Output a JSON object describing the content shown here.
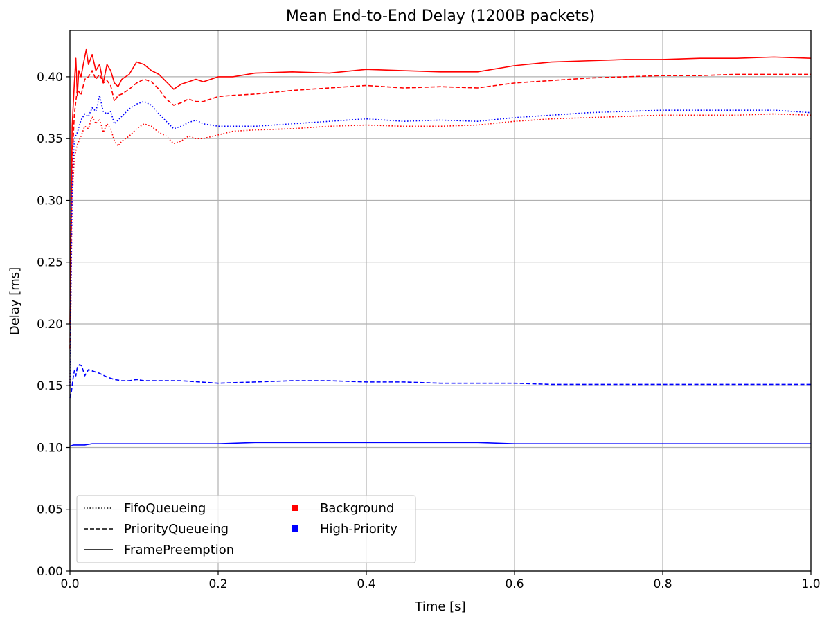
{
  "chart_data": {
    "type": "line",
    "title": "Mean End-to-End Delay (1200B packets)",
    "xlabel": "Time [s]",
    "ylabel": "Delay [ms]",
    "xlim": [
      0.0,
      1.0
    ],
    "ylim": [
      0.0,
      0.4375
    ],
    "x_ticks": [
      "0.0",
      "0.2",
      "0.4",
      "0.6",
      "0.8",
      "1.0"
    ],
    "y_ticks": [
      "0.00",
      "0.05",
      "0.10",
      "0.15",
      "0.20",
      "0.25",
      "0.30",
      "0.35",
      "0.40"
    ],
    "grid": true,
    "legend_position": "lower-left",
    "legend": {
      "styles": [
        {
          "label": "FifoQueueing",
          "dash": "dotted"
        },
        {
          "label": "PriorityQueueing",
          "dash": "dashed"
        },
        {
          "label": "FramePreemption",
          "dash": "solid"
        }
      ],
      "classes": [
        {
          "label": "Background",
          "color": "#ff0000"
        },
        {
          "label": "High-Priority",
          "color": "#0000ff"
        }
      ]
    },
    "series": [
      {
        "class": "Background",
        "method": "FifoQueueing",
        "color": "#ff0000",
        "dash": "dotted",
        "x": [
          0.0,
          0.003,
          0.006,
          0.01,
          0.015,
          0.02,
          0.025,
          0.03,
          0.035,
          0.04,
          0.045,
          0.05,
          0.055,
          0.06,
          0.065,
          0.07,
          0.08,
          0.09,
          0.1,
          0.11,
          0.12,
          0.13,
          0.14,
          0.15,
          0.16,
          0.17,
          0.18,
          0.2,
          0.22,
          0.25,
          0.3,
          0.35,
          0.4,
          0.45,
          0.5,
          0.55,
          0.6,
          0.65,
          0.7,
          0.75,
          0.8,
          0.85,
          0.9,
          0.95,
          1.0
        ],
        "y": [
          0.15,
          0.3,
          0.335,
          0.345,
          0.352,
          0.36,
          0.358,
          0.368,
          0.362,
          0.366,
          0.355,
          0.362,
          0.358,
          0.348,
          0.344,
          0.348,
          0.352,
          0.358,
          0.362,
          0.36,
          0.355,
          0.352,
          0.346,
          0.348,
          0.352,
          0.35,
          0.35,
          0.353,
          0.356,
          0.357,
          0.358,
          0.36,
          0.361,
          0.36,
          0.36,
          0.361,
          0.364,
          0.366,
          0.367,
          0.368,
          0.369,
          0.369,
          0.369,
          0.37,
          0.369
        ]
      },
      {
        "class": "Background",
        "method": "PriorityQueueing",
        "color": "#ff0000",
        "dash": "dashed",
        "x": [
          0.0,
          0.003,
          0.006,
          0.01,
          0.015,
          0.02,
          0.025,
          0.03,
          0.035,
          0.04,
          0.045,
          0.05,
          0.055,
          0.06,
          0.065,
          0.07,
          0.08,
          0.09,
          0.1,
          0.11,
          0.12,
          0.13,
          0.14,
          0.15,
          0.16,
          0.17,
          0.18,
          0.2,
          0.22,
          0.25,
          0.3,
          0.35,
          0.4,
          0.45,
          0.5,
          0.55,
          0.6,
          0.65,
          0.7,
          0.75,
          0.8,
          0.85,
          0.9,
          0.95,
          1.0
        ],
        "y": [
          0.18,
          0.33,
          0.37,
          0.39,
          0.385,
          0.398,
          0.4,
          0.405,
          0.398,
          0.402,
          0.395,
          0.397,
          0.393,
          0.38,
          0.385,
          0.386,
          0.39,
          0.395,
          0.398,
          0.396,
          0.39,
          0.382,
          0.377,
          0.379,
          0.382,
          0.38,
          0.38,
          0.384,
          0.385,
          0.386,
          0.389,
          0.391,
          0.393,
          0.391,
          0.392,
          0.391,
          0.395,
          0.397,
          0.399,
          0.4,
          0.401,
          0.401,
          0.402,
          0.402,
          0.402
        ]
      },
      {
        "class": "Background",
        "method": "FramePreemption",
        "color": "#ff0000",
        "dash": "solid",
        "x": [
          0.0,
          0.003,
          0.006,
          0.008,
          0.01,
          0.012,
          0.015,
          0.018,
          0.022,
          0.025,
          0.03,
          0.035,
          0.04,
          0.045,
          0.05,
          0.055,
          0.06,
          0.065,
          0.07,
          0.08,
          0.09,
          0.1,
          0.11,
          0.12,
          0.13,
          0.14,
          0.15,
          0.16,
          0.17,
          0.18,
          0.2,
          0.22,
          0.25,
          0.3,
          0.35,
          0.4,
          0.45,
          0.5,
          0.55,
          0.6,
          0.65,
          0.7,
          0.75,
          0.8,
          0.85,
          0.9,
          0.95,
          1.0
        ],
        "y": [
          0.2,
          0.36,
          0.395,
          0.415,
          0.385,
          0.405,
          0.4,
          0.41,
          0.422,
          0.41,
          0.418,
          0.405,
          0.41,
          0.395,
          0.41,
          0.405,
          0.395,
          0.392,
          0.398,
          0.402,
          0.412,
          0.41,
          0.405,
          0.402,
          0.396,
          0.39,
          0.394,
          0.396,
          0.398,
          0.396,
          0.4,
          0.4,
          0.403,
          0.404,
          0.403,
          0.406,
          0.405,
          0.404,
          0.404,
          0.409,
          0.412,
          0.413,
          0.414,
          0.414,
          0.415,
          0.415,
          0.416,
          0.415
        ]
      },
      {
        "class": "High-Priority",
        "method": "FifoQueueing",
        "color": "#0000ff",
        "dash": "dotted",
        "x": [
          0.0,
          0.003,
          0.006,
          0.01,
          0.015,
          0.02,
          0.025,
          0.03,
          0.035,
          0.04,
          0.045,
          0.05,
          0.055,
          0.06,
          0.065,
          0.07,
          0.08,
          0.09,
          0.1,
          0.11,
          0.12,
          0.13,
          0.14,
          0.15,
          0.16,
          0.17,
          0.18,
          0.2,
          0.22,
          0.25,
          0.3,
          0.35,
          0.4,
          0.45,
          0.5,
          0.55,
          0.6,
          0.65,
          0.7,
          0.75,
          0.8,
          0.85,
          0.9,
          0.95,
          1.0
        ],
        "y": [
          0.15,
          0.31,
          0.35,
          0.355,
          0.365,
          0.37,
          0.368,
          0.375,
          0.372,
          0.385,
          0.372,
          0.37,
          0.372,
          0.362,
          0.365,
          0.368,
          0.374,
          0.378,
          0.38,
          0.377,
          0.37,
          0.364,
          0.358,
          0.36,
          0.363,
          0.365,
          0.362,
          0.36,
          0.36,
          0.36,
          0.362,
          0.364,
          0.366,
          0.364,
          0.365,
          0.364,
          0.367,
          0.369,
          0.371,
          0.372,
          0.373,
          0.373,
          0.373,
          0.373,
          0.371
        ]
      },
      {
        "class": "High-Priority",
        "method": "PriorityQueueing",
        "color": "#0000ff",
        "dash": "dashed",
        "x": [
          0.0,
          0.002,
          0.004,
          0.006,
          0.008,
          0.01,
          0.013,
          0.016,
          0.02,
          0.025,
          0.03,
          0.04,
          0.05,
          0.06,
          0.07,
          0.08,
          0.09,
          0.1,
          0.12,
          0.15,
          0.2,
          0.25,
          0.3,
          0.35,
          0.4,
          0.45,
          0.5,
          0.55,
          0.6,
          0.65,
          0.7,
          0.75,
          0.8,
          0.85,
          0.9,
          0.95,
          1.0
        ],
        "y": [
          0.14,
          0.145,
          0.155,
          0.162,
          0.158,
          0.165,
          0.167,
          0.166,
          0.158,
          0.163,
          0.162,
          0.16,
          0.157,
          0.155,
          0.154,
          0.154,
          0.155,
          0.154,
          0.154,
          0.154,
          0.152,
          0.153,
          0.154,
          0.154,
          0.153,
          0.153,
          0.152,
          0.152,
          0.152,
          0.151,
          0.151,
          0.151,
          0.151,
          0.151,
          0.151,
          0.151,
          0.151
        ]
      },
      {
        "class": "High-Priority",
        "method": "FramePreemption",
        "color": "#0000ff",
        "dash": "solid",
        "x": [
          0.0,
          0.005,
          0.01,
          0.02,
          0.03,
          0.05,
          0.1,
          0.15,
          0.2,
          0.25,
          0.3,
          0.35,
          0.4,
          0.45,
          0.5,
          0.55,
          0.6,
          0.65,
          0.7,
          0.75,
          0.8,
          0.85,
          0.9,
          0.95,
          1.0
        ],
        "y": [
          0.101,
          0.102,
          0.102,
          0.102,
          0.103,
          0.103,
          0.103,
          0.103,
          0.103,
          0.104,
          0.104,
          0.104,
          0.104,
          0.104,
          0.104,
          0.104,
          0.103,
          0.103,
          0.103,
          0.103,
          0.103,
          0.103,
          0.103,
          0.103,
          0.103
        ]
      }
    ]
  }
}
